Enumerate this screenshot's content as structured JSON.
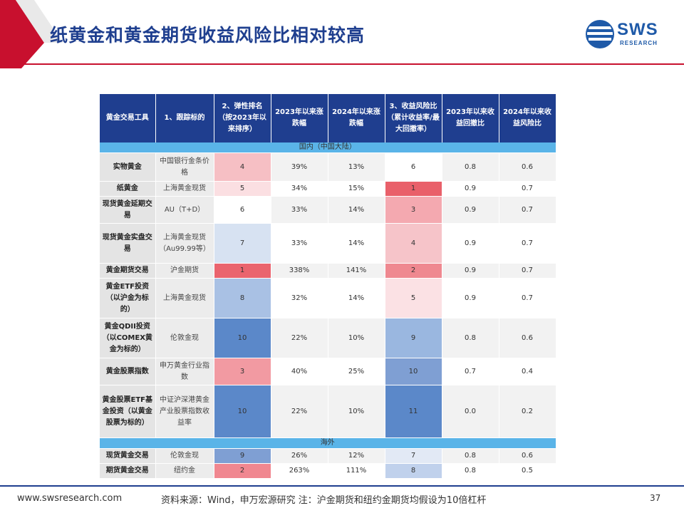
{
  "header": {
    "title": "纸黄金和黄金期货收益风险比相对较高",
    "logo_main": "SWS",
    "logo_sub": "RESEARCH"
  },
  "colors": {
    "title": "#1f3f8f",
    "header_bg": "#1f3e8f",
    "section_bg": "#5ab4e8",
    "accent_red": "#c8102e"
  },
  "table": {
    "headers": [
      "黄金交易工具",
      "1、跟踪标的",
      "2、弹性排名（按2023年以来排序）",
      "2023年以来涨跌幅",
      "2024年以来涨跌幅",
      "3、收益风险比（累计收益率/最大回撤率）",
      "2023年以来收益回撤比",
      "2024年以来收益风险比"
    ],
    "section_domestic": "国内（中国大陆）",
    "section_overseas": "海外",
    "rows": [
      {
        "name": "实物黄金",
        "track": "中国银行金条价格",
        "rank": "4",
        "ret2023": "39%",
        "ret2024": "13%",
        "rr": "6",
        "ratio2023": "0.8",
        "ratio2024": "0.6"
      },
      {
        "name": "纸黄金",
        "track": "上海黄金现货",
        "rank": "5",
        "ret2023": "34%",
        "ret2024": "15%",
        "rr": "1",
        "ratio2023": "0.9",
        "ratio2024": "0.7"
      },
      {
        "name": "现货黄金延期交易",
        "track": "AU（T+D）",
        "rank": "6",
        "ret2023": "33%",
        "ret2024": "14%",
        "rr": "3",
        "ratio2023": "0.9",
        "ratio2024": "0.7"
      },
      {
        "name": "现货黄金实盘交易",
        "track": "上海黄金现货（Au99.99等）",
        "rank": "7",
        "ret2023": "33%",
        "ret2024": "14%",
        "rr": "4",
        "ratio2023": "0.9",
        "ratio2024": "0.7"
      },
      {
        "name": "黄金期货交易",
        "track": "沪金期货",
        "rank": "1",
        "ret2023": "338%",
        "ret2024": "141%",
        "rr": "2",
        "ratio2023": "0.9",
        "ratio2024": "0.7"
      },
      {
        "name": "黄金ETF投资（以沪金为标的）",
        "track": "上海黄金现货",
        "rank": "8",
        "ret2023": "32%",
        "ret2024": "14%",
        "rr": "5",
        "ratio2023": "0.9",
        "ratio2024": "0.7"
      },
      {
        "name": "黄金QDII投资（以COMEX黄金为标的）",
        "track": "伦敦金现",
        "rank": "10",
        "ret2023": "22%",
        "ret2024": "10%",
        "rr": "9",
        "ratio2023": "0.8",
        "ratio2024": "0.6"
      },
      {
        "name": "黄金股票指数",
        "track": "申万黄金行业指数",
        "rank": "3",
        "ret2023": "40%",
        "ret2024": "25%",
        "rr": "10",
        "ratio2023": "0.7",
        "ratio2024": "0.4"
      },
      {
        "name": "黄金股票ETF基金投资（以黄金股票为标的）",
        "track": "中证沪深港黄金产业股票指数收益率",
        "rank": "10",
        "ret2023": "22%",
        "ret2024": "10%",
        "rr": "11",
        "ratio2023": "0.0",
        "ratio2024": "0.2"
      }
    ],
    "overseas_rows": [
      {
        "name": "现货黄金交易",
        "track": "伦敦金现",
        "rank": "9",
        "ret2023": "26%",
        "ret2024": "12%",
        "rr": "7",
        "ratio2023": "0.8",
        "ratio2024": "0.6"
      },
      {
        "name": "期货黄金交易",
        "track": "纽约金",
        "rank": "2",
        "ret2023": "263%",
        "ret2024": "111%",
        "rr": "8",
        "ratio2023": "0.8",
        "ratio2024": "0.5"
      }
    ]
  },
  "footer": {
    "url": "www.swsresearch.com",
    "source": "资料来源：Wind，申万宏源研究 注：沪金期货和纽约金期货均假设为10倍杠杆",
    "page": "37"
  }
}
